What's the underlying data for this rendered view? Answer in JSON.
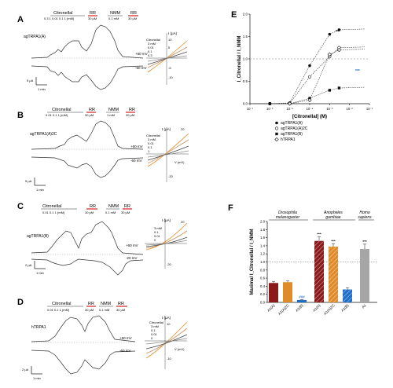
{
  "panel_letters": {
    "a": "A",
    "b": "B",
    "c": "C",
    "d": "D",
    "e": "E",
    "f": "F"
  },
  "panel_a": {
    "channel": "agTRPA1(A)",
    "drug_label": "Citronellal",
    "rr1": "RR",
    "nmm": "NMM",
    "rr2": "RR",
    "doses": "0.3 1 0.01 0.1 1 (mM)",
    "rr1_conc": "30 μM",
    "nmm_conc": "0.1 mM",
    "rr2_conc": "30 μM",
    "v_pos": "+60 mV",
    "v_neg": "-60 mV",
    "scale_i": "5 μA",
    "scale_t": "1 min",
    "iv_title": "I (μA)",
    "iv_legend": [
      "Citronellal",
      "3 mM",
      "0.01",
      "0.1",
      "0.3",
      "0"
    ],
    "iv_ticks": [
      "10",
      "5",
      "-5",
      "-10"
    ]
  },
  "panel_b": {
    "channel": "agTRPA1(A)2C",
    "drug_label": "Citronellal",
    "rr1": "RR",
    "nmm": "NMM",
    "rr2": "RR",
    "doses": "0.01 0.1 1 (mM)",
    "rr1_conc": "30 μM",
    "nmm_conc": "1 mM",
    "rr2_conc": "30 μM",
    "v_pos": "+60 mV",
    "v_neg": "-60 mV",
    "scale_i": "5 μA",
    "scale_t": "1 min",
    "iv_title": "I (μA)",
    "iv_legend": [
      "Citronellal",
      "3 mM",
      "0.01",
      "0.1",
      "1",
      "0"
    ],
    "iv_ticks": [
      "20",
      "-20"
    ],
    "iv_xaxis": "V (mV)"
  },
  "panel_c": {
    "channel": "agTRPA1(B)",
    "drug_label": "Citronellal",
    "rr1": "RR",
    "nmm": "NMM",
    "rr2": "RR",
    "doses": "0.01 0.1 1 (mM)",
    "rr1_conc": "30 μM",
    "nmm_conc": "0.1 mM",
    "rr2_conc": "30 μM",
    "v_pos": "+60 mV",
    "v_neg": "-20 mV",
    "scale_i": "2 μA",
    "scale_t": "1 min",
    "iv_title": "I (μA)",
    "iv_legend": [
      "3 mM",
      "0.1",
      "0.01",
      "0"
    ],
    "iv_ticks": [
      "20",
      "-20"
    ]
  },
  "panel_d": {
    "channel": "hTRPA1",
    "drug_label": "Citronellal",
    "rr1": "RR",
    "nmm": "NMM",
    "rr2": "RR",
    "doses": "0.01 0.1 1 (mM)",
    "rr1_conc": "30 μM",
    "nmm_conc": "0.1 mM",
    "rr2_conc": "30 μM",
    "v_pos": "+60 mV",
    "v_neg": "-60 mV",
    "scale_i": "2 μA",
    "scale_t": "1 min",
    "iv_title": "I (μA)",
    "iv_legend": [
      "Citronellal",
      "3 mM",
      "0.1",
      "0.01",
      "0"
    ],
    "iv_ticks": [
      "10",
      "-10"
    ],
    "iv_xaxis": "V (mV)"
  },
  "chart_data": [
    {
      "type": "scatter",
      "panel": "E",
      "xlabel": "[Citronellal] (M)",
      "ylabel": "I_Citronellal / I_NMM",
      "x_scale": "log",
      "xlim": [
        1e-07,
        0.1
      ],
      "ylim": [
        0,
        2
      ],
      "x_tick_labels": [
        "10⁻⁷",
        "10⁻⁶",
        "10⁻⁵",
        "10⁻⁴",
        "10⁻³",
        "10⁻²",
        "10⁻¹"
      ],
      "y_tick_labels": [
        "0.0",
        "0.5",
        "1.0",
        "1.5",
        "2.0"
      ],
      "reference_line": 1.0,
      "legend_placement": "bottom",
      "annotations": [
        "***",
        "**"
      ],
      "series": [
        {
          "name": "agTRPA1(A)",
          "marker": "filled-circle",
          "x": [
            1e-06,
            1e-05,
            0.0001,
            0.001,
            0.003
          ],
          "y": [
            0.0,
            0.02,
            0.85,
            1.55,
            1.65
          ]
        },
        {
          "name": "agTRPA1(A)2C",
          "marker": "open-circle",
          "x": [
            1e-06,
            1e-05,
            0.0001,
            0.001,
            0.003
          ],
          "y": [
            0.0,
            0.01,
            0.6,
            1.05,
            1.25
          ]
        },
        {
          "name": "agTRPA1(B)",
          "marker": "filled-square",
          "x": [
            1e-06,
            1e-05,
            0.0001,
            0.001,
            0.003
          ],
          "y": [
            0.0,
            0.0,
            0.12,
            0.3,
            0.35
          ]
        },
        {
          "name": "hTRPA1",
          "marker": "open-diamond",
          "x": [
            1e-05,
            0.0001,
            0.001,
            0.003
          ],
          "y": [
            0.0,
            0.08,
            1.1,
            1.2
          ]
        }
      ]
    },
    {
      "type": "bar",
      "panel": "F",
      "ylabel": "Maximal I_Citronellal / I_NMM",
      "ylim": [
        0,
        2.0
      ],
      "y_tick_labels": [
        "0.0",
        "0.2",
        "0.4",
        "0.6",
        "0.8",
        "1.0",
        "1.2",
        "1.4",
        "1.6",
        "1.8",
        "2.0"
      ],
      "reference_line": 1.0,
      "groups": [
        "Drosophila melanogaster",
        "Anopheles gambiae",
        "Homo sapiens"
      ],
      "categories": [
        "A1(A)",
        "A1(A)2C",
        "A1(B)",
        "A1(A)",
        "A1(A)2C",
        "A1(B)",
        "A1"
      ],
      "values": [
        0.48,
        0.5,
        0.06,
        1.52,
        1.38,
        0.32,
        1.32
      ],
      "errors": [
        0.04,
        0.03,
        0.01,
        0.1,
        0.07,
        0.04,
        0.12
      ],
      "colors": [
        "#8b1a1a",
        "#e08a28",
        "#1f6fc9",
        "#8b1a1a",
        "#e08a28",
        "#1f6fc9",
        "#a6a6a6"
      ],
      "hatched": [
        false,
        false,
        false,
        true,
        true,
        true,
        false
      ],
      "significance": [
        "",
        "",
        "###",
        "***",
        "***",
        "",
        "***"
      ]
    }
  ]
}
